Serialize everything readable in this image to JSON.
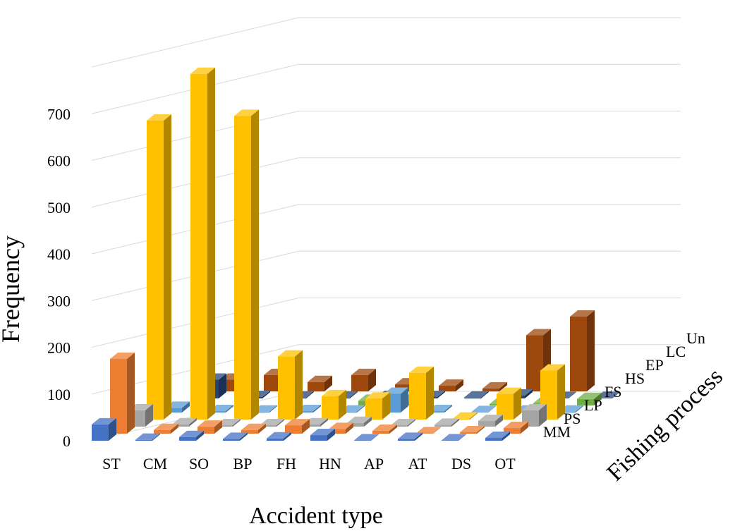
{
  "chart_data": {
    "type": "bar",
    "subtype": "3d-column",
    "ylabel": "Frequency",
    "xlabel": "Accident type",
    "zlabel": "Fishing process",
    "ylim": [
      0,
      800
    ],
    "yticks": [
      0,
      100,
      200,
      300,
      400,
      500,
      600,
      700
    ],
    "grid": true,
    "categories": [
      "ST",
      "CM",
      "SO",
      "BP",
      "FH",
      "HN",
      "AP",
      "AT",
      "DS",
      "OT"
    ],
    "series": [
      {
        "name": "MM",
        "color": "#4472C4",
        "values": [
          35,
          2,
          8,
          4,
          5,
          12,
          1,
          4,
          1,
          6
        ]
      },
      {
        "name": "PS",
        "color": "#ED7D31",
        "values": [
          160,
          8,
          15,
          8,
          18,
          10,
          6,
          1,
          3,
          12
        ]
      },
      {
        "name": "LP",
        "color": "#A5A5A5",
        "values": [
          35,
          5,
          3,
          3,
          5,
          8,
          3,
          4,
          12,
          35
        ]
      },
      {
        "name": "FS",
        "color": "#FFC000",
        "values": [
          640,
          740,
          650,
          135,
          50,
          45,
          100,
          2,
          55,
          105
        ]
      },
      {
        "name": "HS",
        "color": "#5B9BD5",
        "values": [
          10,
          3,
          2,
          3,
          2,
          40,
          3,
          1,
          2,
          2
        ]
      },
      {
        "name": "EP",
        "color": "#70AD47",
        "values": [
          0,
          0,
          0,
          0,
          10,
          12,
          0,
          3,
          5,
          14
        ]
      },
      {
        "name": "LC",
        "color": "#264478",
        "values": [
          40,
          3,
          2,
          2,
          3,
          3,
          2,
          6,
          1,
          1
        ]
      },
      {
        "name": "Un",
        "color": "#9E480E",
        "values": [
          25,
          35,
          20,
          35,
          15,
          12,
          6,
          120,
          160,
          0
        ]
      }
    ]
  }
}
